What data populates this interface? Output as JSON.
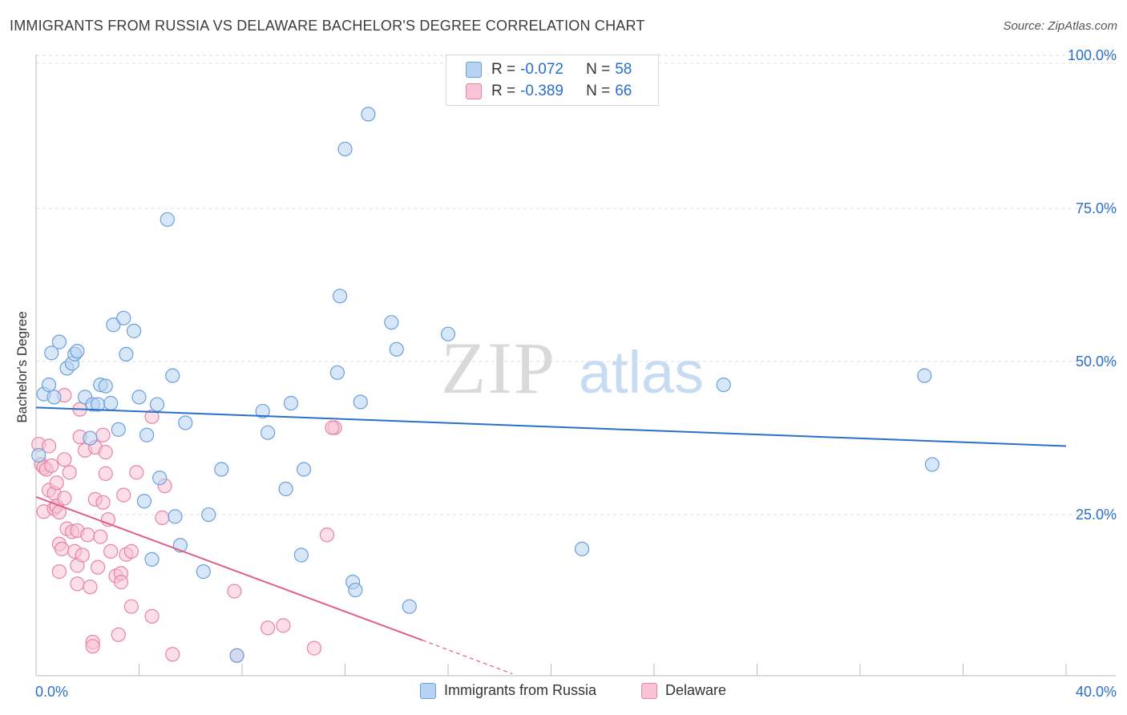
{
  "title": "IMMIGRANTS FROM RUSSIA VS DELAWARE BACHELOR'S DEGREE CORRELATION CHART",
  "source": "Source: ZipAtlas.com",
  "watermark": {
    "zip": "ZIP",
    "atlas": "atlas"
  },
  "colors": {
    "blue_fill": "#b8d3f2",
    "blue_stroke": "#6a9fdc",
    "blue_line": "#2a6fcb",
    "pink_fill": "#f8c3d3",
    "pink_stroke": "#e883a6",
    "pink_line": "#e05d8d",
    "accent_text": "#2a6fcb",
    "grid": "#dddddd"
  },
  "legend": {
    "rows": [
      {
        "r_label": "R =",
        "r_value": "-0.072",
        "n_label": "N =",
        "n_value": "58",
        "color": "blue"
      },
      {
        "r_label": "R =",
        "r_value": "-0.389",
        "n_label": "N =",
        "n_value": "66",
        "color": "pink"
      }
    ]
  },
  "bottom_legend": [
    {
      "label": "Immigrants from Russia",
      "color": "blue"
    },
    {
      "label": "Delaware",
      "color": "pink"
    }
  ],
  "chart_data": {
    "type": "scatter",
    "title": "IMMIGRANTS FROM RUSSIA VS DELAWARE BACHELOR'S DEGREE CORRELATION CHART",
    "xlabel": "",
    "ylabel": "Bachelor's Degree",
    "xlim": [
      0,
      40
    ],
    "ylim": [
      0,
      100
    ],
    "x_tick_labels": [
      "0.0%",
      "40.0%"
    ],
    "y_tick_labels": [
      "100.0%",
      "75.0%",
      "50.0%",
      "25.0%"
    ],
    "y_ticks": [
      100,
      75,
      50,
      25
    ],
    "legend_position": "top-center",
    "series": [
      {
        "name": "Immigrants from Russia",
        "color": "blue",
        "trend": {
          "x0": 0,
          "y0": 43.8,
          "x1": 40,
          "y1": 37.5
        },
        "points": [
          [
            0.3,
            46.0
          ],
          [
            0.5,
            47.5
          ],
          [
            0.6,
            52.7
          ],
          [
            0.7,
            45.5
          ],
          [
            0.9,
            54.5
          ],
          [
            1.2,
            50.2
          ],
          [
            1.4,
            51.0
          ],
          [
            1.5,
            52.5
          ],
          [
            1.6,
            53.0
          ],
          [
            1.9,
            45.5
          ],
          [
            2.1,
            38.8
          ],
          [
            2.2,
            44.3
          ],
          [
            2.4,
            44.3
          ],
          [
            2.5,
            47.5
          ],
          [
            2.7,
            47.3
          ],
          [
            2.9,
            44.5
          ],
          [
            3.0,
            57.3
          ],
          [
            3.2,
            40.2
          ],
          [
            3.4,
            58.4
          ],
          [
            3.5,
            52.5
          ],
          [
            3.8,
            56.3
          ],
          [
            4.0,
            45.5
          ],
          [
            4.2,
            28.5
          ],
          [
            4.3,
            39.3
          ],
          [
            4.5,
            19.0
          ],
          [
            4.7,
            44.3
          ],
          [
            4.8,
            32.3
          ],
          [
            5.1,
            74.5
          ],
          [
            5.3,
            49.0
          ],
          [
            5.4,
            26.0
          ],
          [
            5.6,
            21.3
          ],
          [
            5.8,
            41.3
          ],
          [
            6.5,
            17.0
          ],
          [
            6.7,
            26.3
          ],
          [
            7.2,
            33.7
          ],
          [
            7.8,
            3.3
          ],
          [
            8.8,
            43.2
          ],
          [
            9.0,
            39.7
          ],
          [
            9.7,
            30.5
          ],
          [
            9.9,
            44.5
          ],
          [
            10.3,
            19.7
          ],
          [
            10.4,
            33.7
          ],
          [
            11.7,
            49.5
          ],
          [
            11.8,
            62.0
          ],
          [
            12.0,
            86.0
          ],
          [
            12.3,
            15.3
          ],
          [
            12.4,
            14.0
          ],
          [
            12.6,
            44.7
          ],
          [
            12.9,
            91.7
          ],
          [
            13.8,
            57.7
          ],
          [
            14.0,
            53.3
          ],
          [
            14.5,
            11.3
          ],
          [
            16.0,
            55.8
          ],
          [
            21.2,
            20.7
          ],
          [
            26.7,
            47.5
          ],
          [
            34.5,
            49.0
          ],
          [
            34.8,
            34.5
          ],
          [
            0.1,
            36.0
          ]
        ]
      },
      {
        "name": "Delaware",
        "color": "pink",
        "trend": {
          "x0": 0,
          "y0": 29.2,
          "x1": 15.0,
          "y1": 5.8,
          "dash_to_x": 18.5,
          "dash_to_y": 0.3
        },
        "points": [
          [
            0.1,
            37.8
          ],
          [
            0.2,
            34.5
          ],
          [
            0.3,
            34.0
          ],
          [
            0.3,
            26.8
          ],
          [
            0.4,
            33.7
          ],
          [
            0.5,
            30.3
          ],
          [
            0.5,
            37.5
          ],
          [
            0.6,
            34.3
          ],
          [
            0.7,
            29.8
          ],
          [
            0.7,
            27.3
          ],
          [
            0.8,
            31.5
          ],
          [
            0.8,
            27.7
          ],
          [
            0.9,
            26.7
          ],
          [
            0.9,
            17.0
          ],
          [
            0.9,
            21.5
          ],
          [
            1.0,
            20.7
          ],
          [
            1.1,
            29.0
          ],
          [
            1.1,
            35.3
          ],
          [
            1.1,
            45.8
          ],
          [
            1.2,
            24.0
          ],
          [
            1.3,
            33.2
          ],
          [
            1.4,
            23.5
          ],
          [
            1.5,
            20.3
          ],
          [
            1.6,
            23.7
          ],
          [
            1.6,
            18.0
          ],
          [
            1.6,
            15.0
          ],
          [
            1.7,
            39.0
          ],
          [
            1.7,
            43.5
          ],
          [
            1.8,
            19.7
          ],
          [
            1.9,
            36.8
          ],
          [
            2.0,
            23.0
          ],
          [
            2.1,
            14.5
          ],
          [
            2.2,
            5.5
          ],
          [
            2.2,
            4.8
          ],
          [
            2.3,
            28.8
          ],
          [
            2.3,
            37.3
          ],
          [
            2.4,
            17.7
          ],
          [
            2.5,
            22.7
          ],
          [
            2.6,
            28.3
          ],
          [
            2.6,
            39.3
          ],
          [
            2.7,
            36.5
          ],
          [
            2.7,
            33.0
          ],
          [
            2.8,
            25.5
          ],
          [
            2.9,
            20.3
          ],
          [
            3.1,
            16.3
          ],
          [
            3.2,
            6.7
          ],
          [
            3.3,
            16.7
          ],
          [
            3.3,
            15.3
          ],
          [
            3.4,
            29.5
          ],
          [
            3.5,
            19.8
          ],
          [
            3.7,
            20.3
          ],
          [
            3.7,
            11.3
          ],
          [
            3.9,
            33.2
          ],
          [
            4.5,
            9.7
          ],
          [
            4.5,
            42.3
          ],
          [
            4.9,
            25.8
          ],
          [
            5.0,
            31.0
          ],
          [
            5.3,
            3.5
          ],
          [
            7.7,
            13.8
          ],
          [
            7.8,
            3.3
          ],
          [
            9.0,
            7.8
          ],
          [
            9.6,
            8.2
          ],
          [
            10.8,
            4.5
          ],
          [
            11.3,
            23.0
          ],
          [
            11.6,
            40.5
          ],
          [
            11.5,
            40.5
          ]
        ]
      }
    ]
  }
}
